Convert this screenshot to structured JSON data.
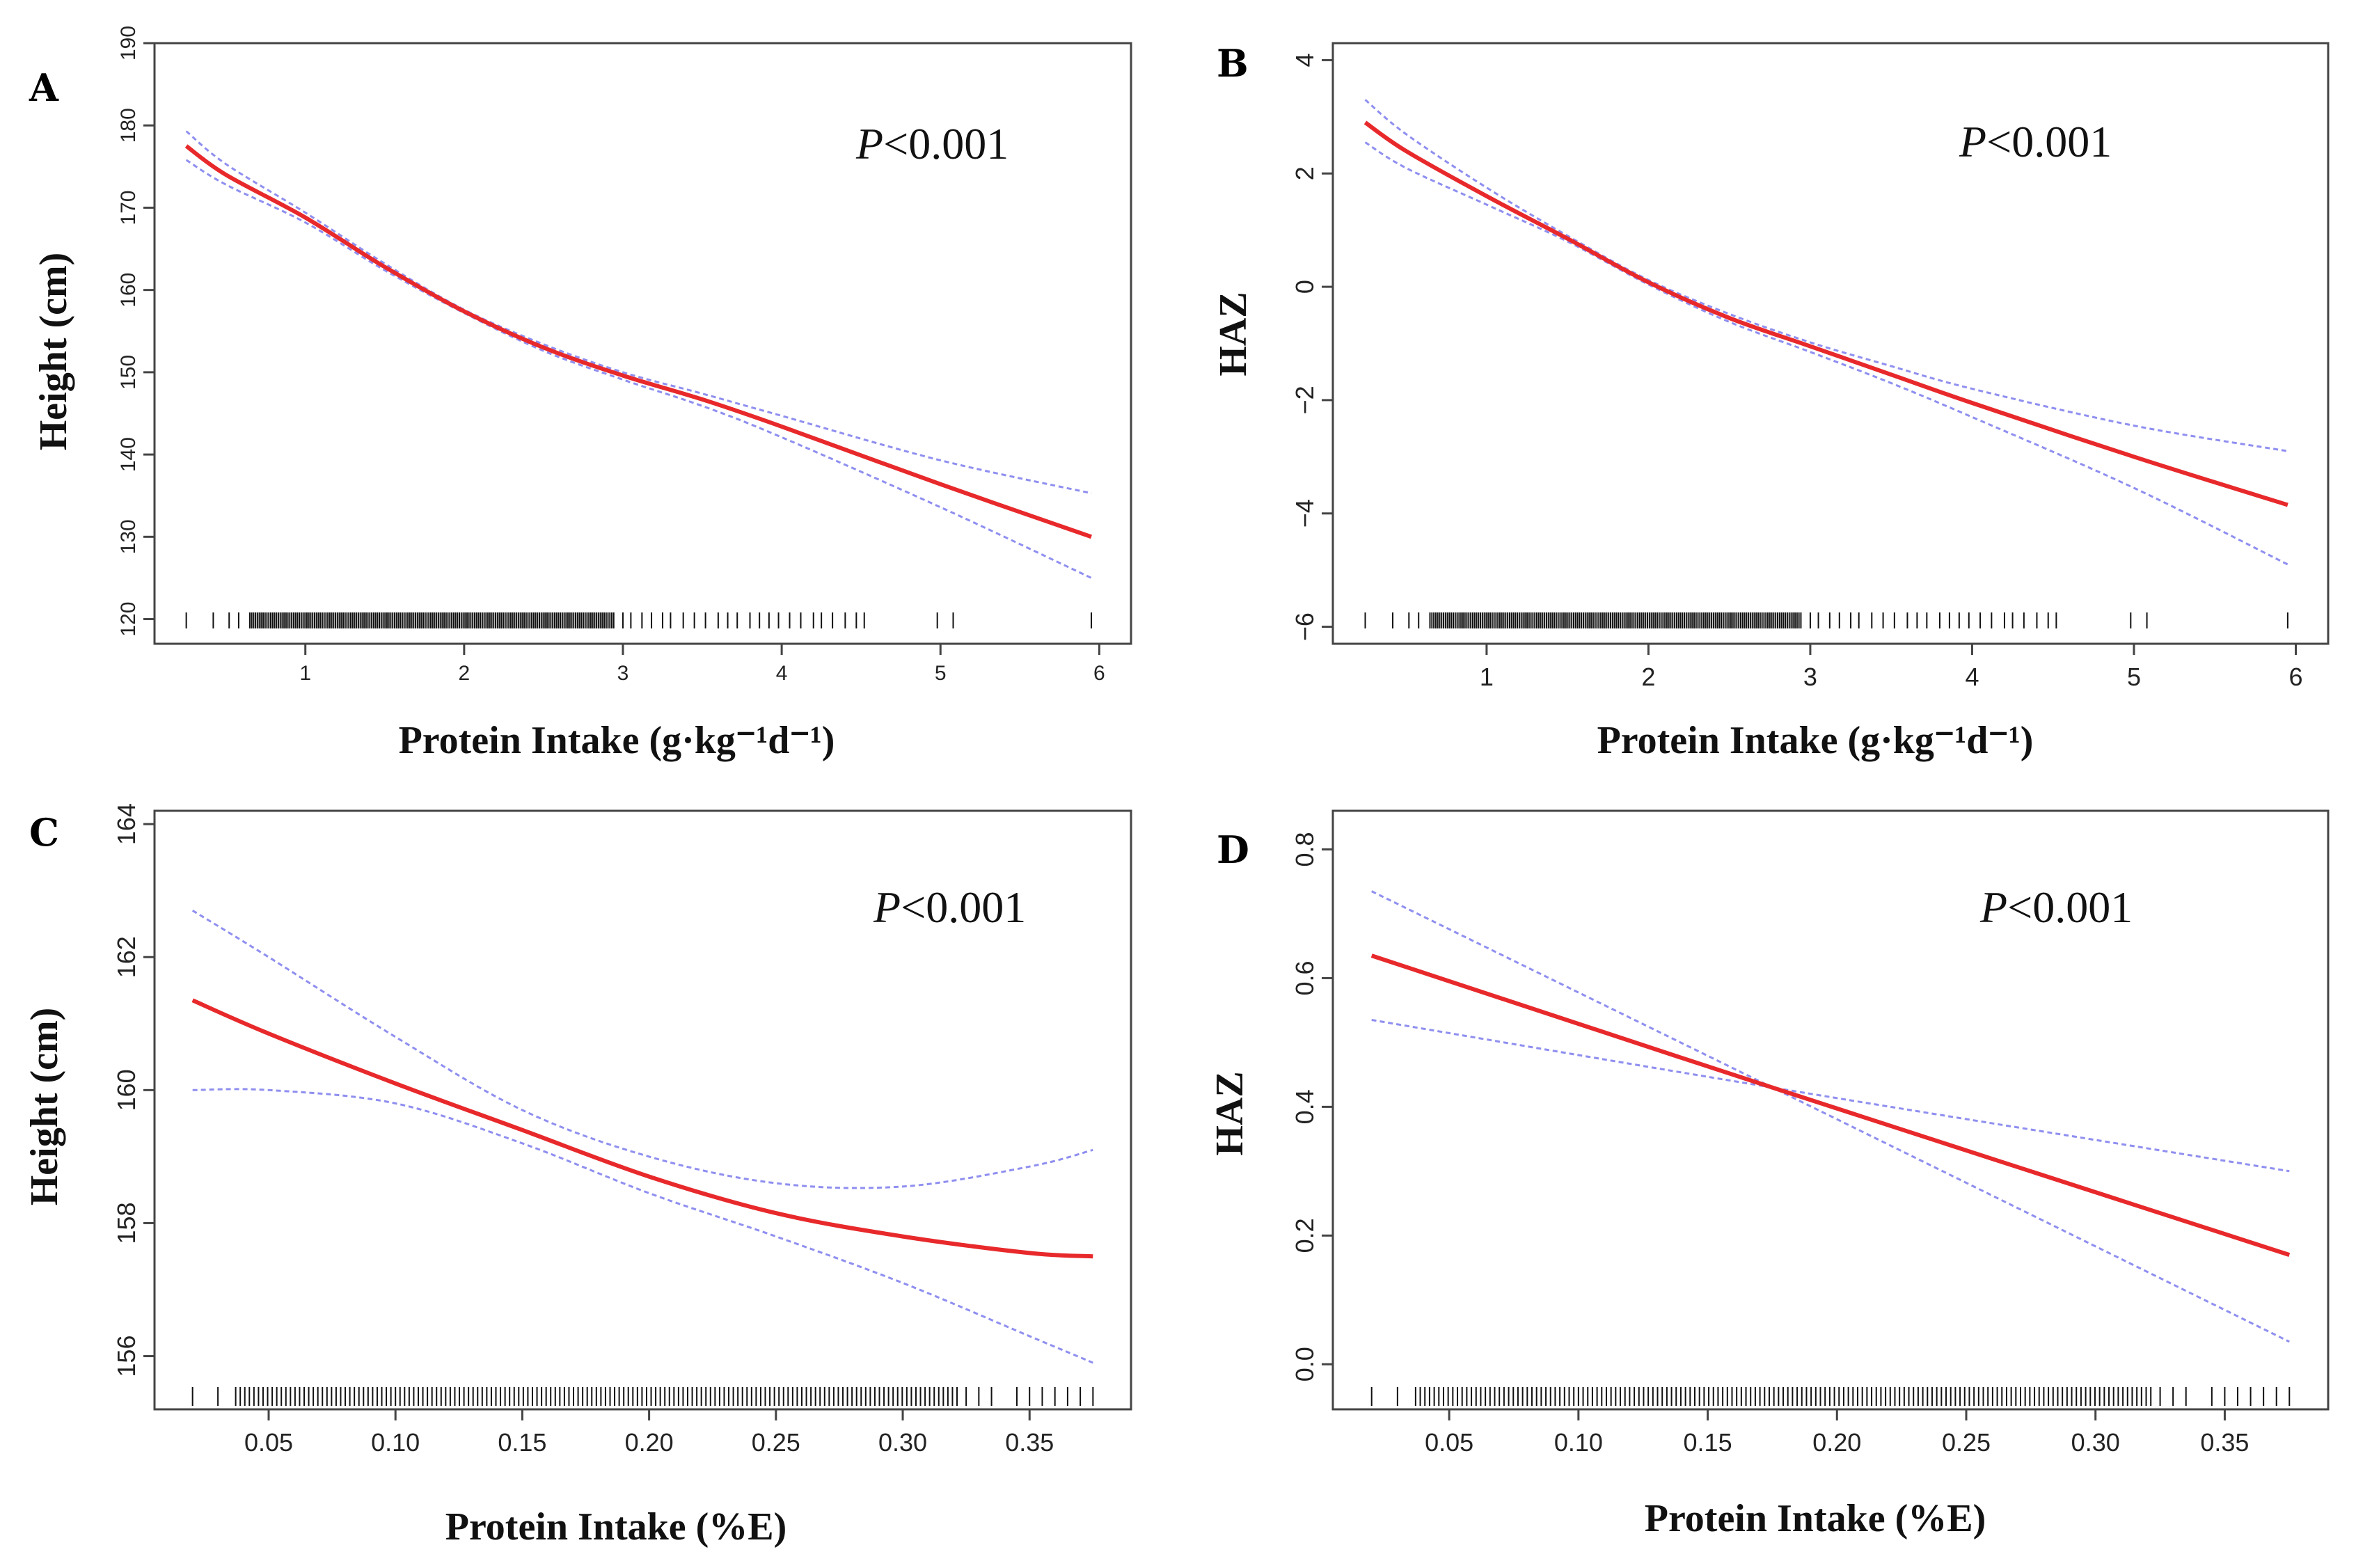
{
  "chart_data": [
    {
      "id": "A",
      "panel_label": "A",
      "type": "line",
      "xlabel": "Protein Intake (g·kg⁻¹d⁻¹)",
      "ylabel": "Height (cm)",
      "annotation": {
        "p_italic": "P",
        "p_rest": "<0.001"
      },
      "xlim": [
        0.05,
        6.2
      ],
      "ylim": [
        117,
        190
      ],
      "xticks": [
        1,
        2,
        3,
        4,
        5,
        6
      ],
      "xtick_labels": [
        "1",
        "2",
        "3",
        "4",
        "5",
        "6"
      ],
      "yticks": [
        120,
        130,
        140,
        150,
        160,
        170,
        180,
        190
      ],
      "ytick_labels": [
        "120",
        "130",
        "140",
        "150",
        "160",
        "170",
        "180",
        "190"
      ],
      "series": [
        {
          "name": "fit",
          "x": [
            0.25,
            0.5,
            1.0,
            1.5,
            2.0,
            2.5,
            3.0,
            3.5,
            4.0,
            5.0,
            5.95
          ],
          "values": [
            177.5,
            174.0,
            168.8,
            162.8,
            157.4,
            153.0,
            149.6,
            146.7,
            143.4,
            136.4,
            130.0
          ]
        },
        {
          "name": "ci_upper",
          "x": [
            0.25,
            0.5,
            1.0,
            1.5,
            2.0,
            2.5,
            3.0,
            3.5,
            4.0,
            5.0,
            5.95
          ],
          "values": [
            179.3,
            175.3,
            169.4,
            163.2,
            157.6,
            153.4,
            150.0,
            147.4,
            144.7,
            139.3,
            135.3
          ]
        },
        {
          "name": "ci_lower",
          "x": [
            0.25,
            0.5,
            1.0,
            1.5,
            2.0,
            2.5,
            3.0,
            3.5,
            4.0,
            5.0,
            5.95
          ],
          "values": [
            175.8,
            172.8,
            168.2,
            162.4,
            157.2,
            152.6,
            149.1,
            145.9,
            142.1,
            133.6,
            125.0
          ]
        }
      ],
      "rug": {
        "dense_range": [
          0.65,
          2.95
        ],
        "dense_step": 0.012,
        "sparse": [
          0.25,
          0.42,
          0.52,
          0.58,
          3.0,
          3.05,
          3.12,
          3.18,
          3.25,
          3.3,
          3.38,
          3.45,
          3.52,
          3.6,
          3.66,
          3.72,
          3.8,
          3.86,
          3.92,
          3.98,
          4.05,
          4.12,
          4.2,
          4.25,
          4.32,
          4.4,
          4.47,
          4.52,
          4.98,
          5.08,
          5.95
        ]
      }
    },
    {
      "id": "B",
      "panel_label": "B",
      "type": "line",
      "xlabel": "Protein Intake (g·kg⁻¹d⁻¹)",
      "ylabel": "HAZ",
      "annotation": {
        "p_italic": "P",
        "p_rest": "<0.001"
      },
      "xlim": [
        0.05,
        6.2
      ],
      "ylim": [
        -6.3,
        4.3
      ],
      "xticks": [
        1,
        2,
        3,
        4,
        5,
        6
      ],
      "xtick_labels": [
        "1",
        "2",
        "3",
        "4",
        "5",
        "6"
      ],
      "yticks": [
        -6,
        -4,
        -2,
        0,
        2,
        4
      ],
      "ytick_labels": [
        "−6",
        "−4",
        "−2",
        "0",
        "2",
        "4"
      ],
      "series": [
        {
          "name": "fit",
          "x": [
            0.25,
            0.5,
            1.0,
            1.5,
            2.0,
            2.5,
            3.0,
            3.5,
            4.0,
            5.0,
            5.95
          ],
          "values": [
            2.9,
            2.4,
            1.6,
            0.85,
            0.08,
            -0.55,
            -1.05,
            -1.55,
            -2.05,
            -3.0,
            -3.85
          ]
        },
        {
          "name": "ci_upper",
          "x": [
            0.25,
            0.5,
            1.0,
            1.5,
            2.0,
            2.5,
            3.0,
            3.5,
            4.0,
            5.0,
            5.95
          ],
          "values": [
            3.3,
            2.7,
            1.75,
            0.9,
            0.12,
            -0.48,
            -0.98,
            -1.4,
            -1.8,
            -2.45,
            -2.9
          ]
        },
        {
          "name": "ci_lower",
          "x": [
            0.25,
            0.5,
            1.0,
            1.5,
            2.0,
            2.5,
            3.0,
            3.5,
            4.0,
            5.0,
            5.95
          ],
          "values": [
            2.55,
            2.1,
            1.45,
            0.8,
            0.04,
            -0.62,
            -1.15,
            -1.7,
            -2.3,
            -3.55,
            -4.9
          ]
        }
      ],
      "rug": {
        "dense_range": [
          0.65,
          2.95
        ],
        "dense_step": 0.012,
        "sparse": [
          0.25,
          0.42,
          0.52,
          0.58,
          3.0,
          3.05,
          3.12,
          3.18,
          3.25,
          3.3,
          3.38,
          3.45,
          3.52,
          3.6,
          3.66,
          3.72,
          3.8,
          3.86,
          3.92,
          3.98,
          4.05,
          4.12,
          4.2,
          4.25,
          4.32,
          4.4,
          4.47,
          4.52,
          4.98,
          5.08,
          5.95
        ]
      }
    },
    {
      "id": "C",
      "panel_label": "C",
      "type": "line",
      "xlabel": "Protein Intake (%E)",
      "ylabel": "Height (cm)",
      "annotation": {
        "p_italic": "P",
        "p_rest": "<0.001"
      },
      "xlim": [
        0.005,
        0.39
      ],
      "ylim": [
        155.2,
        164.2
      ],
      "xticks": [
        0.05,
        0.1,
        0.15,
        0.2,
        0.25,
        0.3,
        0.35
      ],
      "xtick_labels": [
        "0.05",
        "0.10",
        "0.15",
        "0.20",
        "0.25",
        "0.30",
        "0.35"
      ],
      "yticks": [
        156,
        158,
        160,
        162,
        164
      ],
      "ytick_labels": [
        "156",
        "158",
        "160",
        "162",
        "164"
      ],
      "series": [
        {
          "name": "fit",
          "x": [
            0.02,
            0.05,
            0.1,
            0.15,
            0.2,
            0.25,
            0.3,
            0.35,
            0.375
          ],
          "values": [
            161.35,
            160.85,
            160.1,
            159.4,
            158.7,
            158.15,
            157.8,
            157.55,
            157.5
          ]
        },
        {
          "name": "ci_upper",
          "x": [
            0.02,
            0.05,
            0.1,
            0.15,
            0.2,
            0.25,
            0.3,
            0.35,
            0.375
          ],
          "values": [
            162.7,
            162.0,
            160.8,
            159.7,
            159.0,
            158.6,
            158.55,
            158.85,
            159.1
          ]
        },
        {
          "name": "ci_lower",
          "x": [
            0.02,
            0.05,
            0.1,
            0.15,
            0.2,
            0.25,
            0.3,
            0.35,
            0.375
          ],
          "values": [
            160.0,
            160.0,
            159.8,
            159.2,
            158.45,
            157.8,
            157.1,
            156.3,
            155.9
          ]
        }
      ],
      "rug": {
        "dense_range": [
          0.037,
          0.322
        ],
        "dense_step": 0.0018,
        "sparse": [
          0.02,
          0.03,
          0.325,
          0.33,
          0.335,
          0.345,
          0.35,
          0.355,
          0.36,
          0.365,
          0.37,
          0.375
        ]
      }
    },
    {
      "id": "D",
      "panel_label": "D",
      "type": "line",
      "xlabel": "Protein Intake (%E)",
      "ylabel": "HAZ",
      "annotation": {
        "p_italic": "P",
        "p_rest": "<0.001"
      },
      "xlim": [
        0.005,
        0.39
      ],
      "ylim": [
        -0.07,
        0.86
      ],
      "xticks": [
        0.05,
        0.1,
        0.15,
        0.2,
        0.25,
        0.3,
        0.35
      ],
      "xtick_labels": [
        "0.05",
        "0.10",
        "0.15",
        "0.20",
        "0.25",
        "0.30",
        "0.35"
      ],
      "yticks": [
        0.0,
        0.2,
        0.4,
        0.6,
        0.8
      ],
      "ytick_labels": [
        "0.0",
        "0.2",
        "0.4",
        "0.6",
        "0.8"
      ],
      "series": [
        {
          "name": "fit",
          "x": [
            0.02,
            0.175,
            0.375
          ],
          "values": [
            0.635,
            0.43,
            0.17
          ]
        },
        {
          "name": "ci_upper",
          "x": [
            0.02,
            0.175,
            0.375
          ],
          "values": [
            0.735,
            0.43,
            0.035
          ]
        },
        {
          "name": "ci_lower",
          "x": [
            0.02,
            0.175,
            0.375
          ],
          "values": [
            0.535,
            0.43,
            0.3
          ]
        }
      ],
      "rug": {
        "dense_range": [
          0.037,
          0.322
        ],
        "dense_step": 0.0018,
        "sparse": [
          0.02,
          0.03,
          0.325,
          0.33,
          0.335,
          0.345,
          0.35,
          0.355,
          0.36,
          0.365,
          0.37,
          0.375
        ]
      }
    }
  ]
}
